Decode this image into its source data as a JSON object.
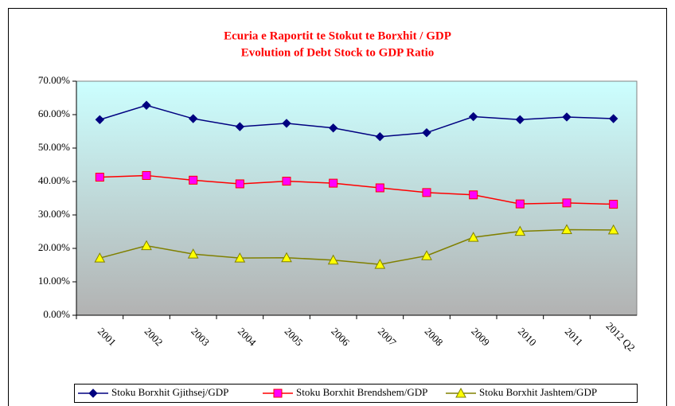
{
  "chart_data": {
    "type": "line",
    "title": "Ecuria e Raportit te Stokut te Borxhit / GDP",
    "subtitle": "Evolution of Debt Stock to GDP Ratio",
    "categories": [
      "2001",
      "2002",
      "2003",
      "2004",
      "2005",
      "2006",
      "2007",
      "2008",
      "2009",
      "2010",
      "2011",
      "2012 Q2"
    ],
    "series": [
      {
        "name": "Stoku Borxhit Gjithsej/GDP",
        "color": "#000080",
        "marker": "diamond",
        "values": [
          58.5,
          62.8,
          58.8,
          56.4,
          57.4,
          56.0,
          53.4,
          54.6,
          59.4,
          58.5,
          59.3,
          58.8
        ]
      },
      {
        "name": "Stoku Borxhit Brendshem/GDP",
        "color": "#ff0000",
        "marker": "square",
        "marker_color": "#ff00ff",
        "values": [
          41.3,
          41.8,
          40.4,
          39.3,
          40.1,
          39.5,
          38.1,
          36.7,
          36.0,
          33.3,
          33.6,
          33.2
        ]
      },
      {
        "name": "Stoku Borxhit Jashtem/GDP",
        "color": "#808000",
        "marker": "triangle",
        "marker_color": "#ffff00",
        "values": [
          17.1,
          20.8,
          18.3,
          17.1,
          17.2,
          16.5,
          15.2,
          17.8,
          23.3,
          25.1,
          25.6,
          25.5
        ]
      }
    ],
    "ylim": [
      0,
      70
    ],
    "yticks": [
      {
        "value": 0,
        "label": "0.00%"
      },
      {
        "value": 10,
        "label": "10.00%"
      },
      {
        "value": 20,
        "label": "20.00%"
      },
      {
        "value": 30,
        "label": "30.00%"
      },
      {
        "value": 40,
        "label": "40.00%"
      },
      {
        "value": 50,
        "label": "50.00%"
      },
      {
        "value": 60,
        "label": "60.00%"
      },
      {
        "value": 70,
        "label": "70.00%"
      }
    ],
    "legend": "bottom"
  }
}
